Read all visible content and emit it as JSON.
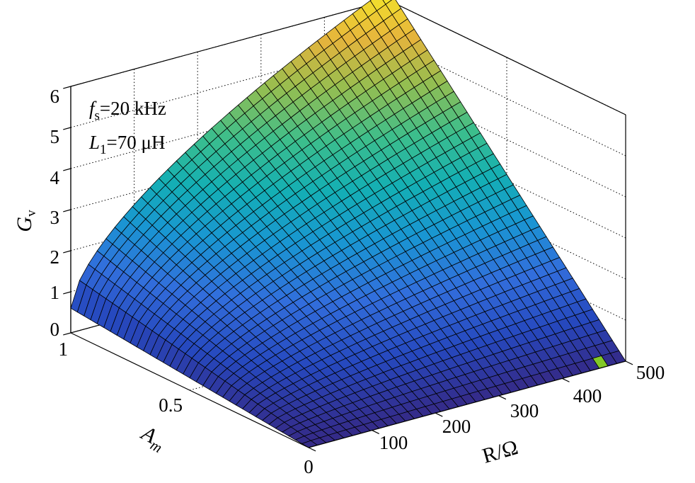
{
  "chart_data": {
    "type": "surface",
    "title": "",
    "zlabel": {
      "main": "G",
      "sub": "v"
    },
    "xlabel": "R/Ω",
    "ylabel": {
      "main": "A",
      "sub": "m"
    },
    "x_range": [
      0,
      500
    ],
    "y_range": [
      0,
      1
    ],
    "z_range": [
      0,
      6
    ],
    "x_ticks": [
      "0",
      "100",
      "200",
      "300",
      "400",
      "500"
    ],
    "y_ticks": [
      "0.5",
      "1"
    ],
    "z_ticks": [
      "0",
      "1",
      "2",
      "3",
      "4",
      "5",
      "6"
    ],
    "grid": true,
    "colormap": "parula",
    "annotations": [
      {
        "var": "f",
        "sub": "s",
        "value": "=20 kHz"
      },
      {
        "var": "L",
        "sub": "1",
        "value": "=70 μH"
      }
    ],
    "corner_values": [
      {
        "R": 0,
        "Am": 0,
        "Gv": 0
      },
      {
        "R": 500,
        "Am": 0,
        "Gv": 0
      },
      {
        "R": 0,
        "Am": 1,
        "Gv": 0.6
      },
      {
        "R": 500,
        "Am": 1,
        "Gv": 6.3
      }
    ]
  }
}
